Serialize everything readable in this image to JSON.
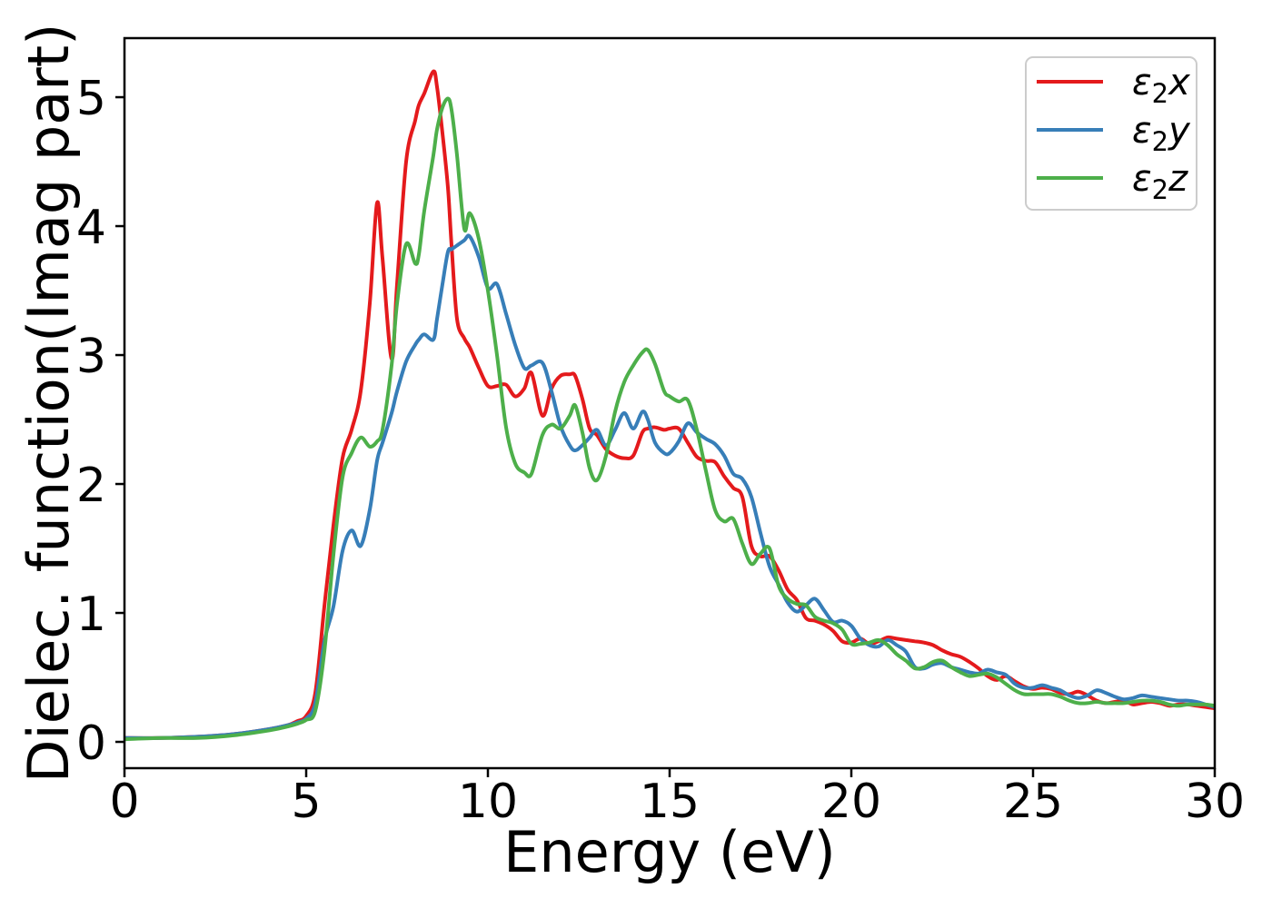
{
  "figure": {
    "background": "#ffffff",
    "axis_color": "#000000"
  },
  "chart_data": {
    "type": "line",
    "title": "",
    "xlabel": "Energy (eV)",
    "ylabel": "Dielec. function(Imag part)",
    "xlim": [
      0,
      30
    ],
    "ylim": [
      -0.204,
      5.458
    ],
    "xticks": [
      0,
      5,
      10,
      15,
      20,
      25,
      30
    ],
    "yticks": [
      0,
      1,
      2,
      3,
      4,
      5
    ],
    "grid": false,
    "legend_position": "upper right",
    "legend_border_color": "#cccccc",
    "x": [
      0,
      1,
      2,
      3,
      4,
      4.5,
      4.75,
      5,
      5.25,
      5.5,
      5.75,
      6,
      6.25,
      6.5,
      6.75,
      6.95,
      7.1,
      7.35,
      7.5,
      7.75,
      8,
      8.1,
      8.25,
      8.5,
      8.6,
      8.75,
      8.9,
      9,
      9.15,
      9.35,
      9.5,
      9.75,
      10,
      10.25,
      10.5,
      10.75,
      11,
      11.2,
      11.5,
      11.75,
      12,
      12.25,
      12.4,
      12.6,
      12.8,
      13,
      13.25,
      13.5,
      13.75,
      14,
      14.25,
      14.4,
      14.6,
      14.85,
      15,
      15.25,
      15.5,
      15.75,
      16,
      16.25,
      16.5,
      16.75,
      17,
      17.25,
      17.5,
      17.75,
      18,
      18.25,
      18.5,
      18.75,
      19,
      19.25,
      19.5,
      19.75,
      20,
      20.25,
      20.5,
      20.75,
      21,
      21.25,
      21.5,
      21.75,
      22,
      22.25,
      22.5,
      22.75,
      23,
      23.25,
      23.5,
      23.75,
      24,
      24.25,
      24.5,
      24.75,
      25,
      25.25,
      25.5,
      25.75,
      26,
      26.25,
      26.5,
      26.75,
      27,
      27.25,
      27.5,
      27.75,
      28,
      28.25,
      28.5,
      28.75,
      29,
      29.25,
      29.5,
      29.75,
      30
    ],
    "series": [
      {
        "name": "eps2x",
        "label_base": "ε",
        "label_sub": "2",
        "label_var": "x",
        "color": "#e41a1c",
        "values": [
          0.03,
          0.03,
          0.04,
          0.06,
          0.1,
          0.13,
          0.16,
          0.2,
          0.38,
          1.05,
          1.68,
          2.2,
          2.42,
          2.72,
          3.4,
          4.18,
          3.75,
          2.97,
          3.55,
          4.5,
          4.82,
          4.94,
          5.03,
          5.2,
          5.08,
          4.72,
          4.3,
          3.85,
          3.28,
          3.13,
          3.06,
          2.9,
          2.76,
          2.76,
          2.77,
          2.68,
          2.74,
          2.86,
          2.53,
          2.74,
          2.84,
          2.85,
          2.84,
          2.66,
          2.43,
          2.38,
          2.27,
          2.22,
          2.2,
          2.22,
          2.4,
          2.43,
          2.44,
          2.42,
          2.43,
          2.43,
          2.32,
          2.21,
          2.18,
          2.17,
          2.06,
          1.97,
          1.9,
          1.52,
          1.44,
          1.44,
          1.33,
          1.18,
          1.1,
          0.96,
          0.94,
          0.91,
          0.86,
          0.78,
          0.77,
          0.8,
          0.76,
          0.78,
          0.81,
          0.8,
          0.79,
          0.78,
          0.77,
          0.75,
          0.71,
          0.68,
          0.66,
          0.62,
          0.57,
          0.51,
          0.48,
          0.51,
          0.47,
          0.43,
          0.41,
          0.42,
          0.41,
          0.38,
          0.37,
          0.39,
          0.36,
          0.32,
          0.3,
          0.31,
          0.32,
          0.29,
          0.3,
          0.31,
          0.3,
          0.28,
          0.29,
          0.29,
          0.28,
          0.27,
          0.26
        ]
      },
      {
        "name": "eps2y",
        "label_base": "ε",
        "label_sub": "2",
        "label_var": "y",
        "color": "#377eb8",
        "values": [
          0.03,
          0.03,
          0.04,
          0.06,
          0.1,
          0.13,
          0.15,
          0.18,
          0.3,
          0.78,
          1.05,
          1.48,
          1.64,
          1.52,
          1.8,
          2.18,
          2.32,
          2.55,
          2.72,
          2.95,
          3.08,
          3.12,
          3.16,
          3.12,
          3.28,
          3.55,
          3.8,
          3.82,
          3.85,
          3.89,
          3.92,
          3.76,
          3.52,
          3.55,
          3.32,
          3.08,
          2.9,
          2.92,
          2.94,
          2.72,
          2.45,
          2.3,
          2.26,
          2.3,
          2.36,
          2.42,
          2.3,
          2.42,
          2.55,
          2.43,
          2.56,
          2.5,
          2.32,
          2.24,
          2.24,
          2.33,
          2.47,
          2.4,
          2.35,
          2.31,
          2.22,
          2.08,
          2.04,
          1.9,
          1.62,
          1.36,
          1.22,
          1.08,
          1.01,
          1.06,
          1.11,
          1.02,
          0.93,
          0.94,
          0.9,
          0.8,
          0.75,
          0.74,
          0.79,
          0.75,
          0.7,
          0.58,
          0.57,
          0.6,
          0.61,
          0.58,
          0.56,
          0.54,
          0.53,
          0.56,
          0.54,
          0.52,
          0.45,
          0.42,
          0.42,
          0.44,
          0.42,
          0.4,
          0.36,
          0.34,
          0.36,
          0.4,
          0.38,
          0.35,
          0.33,
          0.34,
          0.36,
          0.35,
          0.34,
          0.33,
          0.32,
          0.32,
          0.31,
          0.29,
          0.27
        ]
      },
      {
        "name": "eps2z",
        "label_base": "ε",
        "label_sub": "2",
        "label_var": "z",
        "color": "#4daf4a",
        "values": [
          0.02,
          0.03,
          0.03,
          0.05,
          0.09,
          0.12,
          0.14,
          0.17,
          0.24,
          0.7,
          1.45,
          2.05,
          2.24,
          2.36,
          2.29,
          2.33,
          2.42,
          2.92,
          3.4,
          3.86,
          3.71,
          3.78,
          4.12,
          4.55,
          4.75,
          4.92,
          4.99,
          4.9,
          4.55,
          3.98,
          4.1,
          3.9,
          3.5,
          3.0,
          2.44,
          2.16,
          2.09,
          2.08,
          2.38,
          2.46,
          2.43,
          2.53,
          2.61,
          2.4,
          2.12,
          2.03,
          2.22,
          2.56,
          2.79,
          2.92,
          3.02,
          3.04,
          2.93,
          2.72,
          2.68,
          2.64,
          2.65,
          2.42,
          2.1,
          1.8,
          1.71,
          1.73,
          1.54,
          1.38,
          1.46,
          1.5,
          1.21,
          1.11,
          1.07,
          1.06,
          0.97,
          0.94,
          0.92,
          0.87,
          0.76,
          0.76,
          0.77,
          0.79,
          0.75,
          0.68,
          0.63,
          0.57,
          0.58,
          0.62,
          0.63,
          0.58,
          0.54,
          0.51,
          0.52,
          0.53,
          0.5,
          0.45,
          0.4,
          0.37,
          0.37,
          0.37,
          0.37,
          0.35,
          0.32,
          0.3,
          0.3,
          0.31,
          0.3,
          0.3,
          0.3,
          0.31,
          0.32,
          0.32,
          0.31,
          0.29,
          0.28,
          0.29,
          0.29,
          0.29,
          0.28
        ]
      }
    ]
  }
}
